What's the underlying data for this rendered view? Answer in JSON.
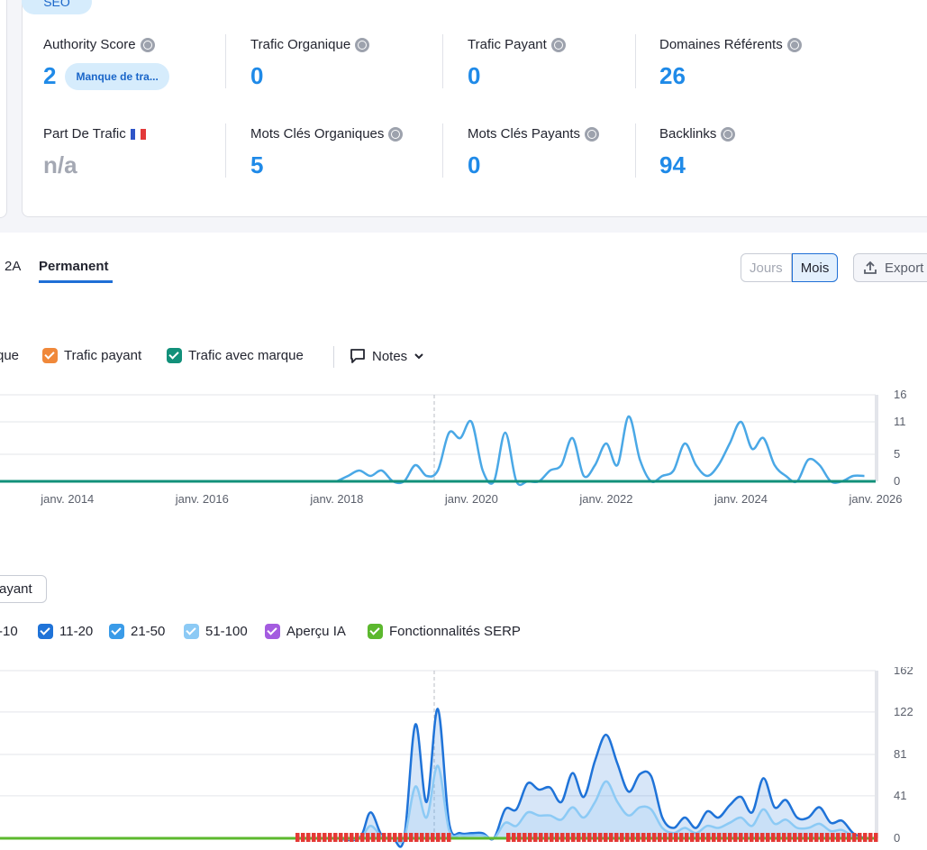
{
  "seo_pill": "SEO",
  "metrics": {
    "authority_score": {
      "label": "Authority Score",
      "value": "2",
      "badge": "Manque de tra..."
    },
    "trafic_organique": {
      "label": "Trafic Organique",
      "value": "0"
    },
    "trafic_payant": {
      "label": "Trafic Payant",
      "value": "0"
    },
    "domaines_referents": {
      "label": "Domaines Référents",
      "value": "26"
    },
    "part_de_trafic": {
      "label": "Part De Trafic",
      "value": "n/a"
    },
    "mots_cles_organiques": {
      "label": "Mots Clés Organiques",
      "value": "5"
    },
    "mots_cles_payants": {
      "label": "Mots Clés Payants",
      "value": "0"
    },
    "backlinks": {
      "label": "Backlinks",
      "value": "94"
    }
  },
  "tabs": [
    "2A",
    "Permanent"
  ],
  "active_tab": "Permanent",
  "granularity": {
    "options": [
      "Jours",
      "Mois"
    ],
    "selected": "Mois"
  },
  "export_label": "Export",
  "traffic_legend": [
    {
      "label": "que",
      "color": "#1f8ae8"
    },
    {
      "label": "Trafic payant",
      "color": "#f0883a"
    },
    {
      "label": "Trafic avec marque",
      "color": "#12907a"
    }
  ],
  "notes_label": "Notes",
  "payant_button": "ayant",
  "keyword_legend": [
    {
      "label": "-10",
      "color": "#1559b8"
    },
    {
      "label": "11-20",
      "color": "#1f73d8"
    },
    {
      "label": "21-50",
      "color": "#3a9be8"
    },
    {
      "label": "51-100",
      "color": "#8ccaf5"
    },
    {
      "label": "Aperçu IA",
      "color": "#a45ce0"
    },
    {
      "label": "Fonctionnalités SERP",
      "color": "#5cb82e"
    }
  ],
  "chart_data": [
    {
      "type": "line",
      "x_ticks": [
        "janv. 2014",
        "janv. 2016",
        "janv. 2018",
        "janv. 2020",
        "janv. 2022",
        "janv. 2024",
        "janv. 2026"
      ],
      "y_ticks": [
        0,
        5,
        11,
        16
      ],
      "ylim": [
        0,
        16
      ],
      "xlim": [
        "2013-01",
        "2026-01"
      ],
      "series": [
        {
          "name": "Trafic organique",
          "color": "#4aa8e6",
          "points": [
            [
              "2018-01",
              0
            ],
            [
              "2018-03",
              1
            ],
            [
              "2018-05",
              2
            ],
            [
              "2018-07",
              1
            ],
            [
              "2018-09",
              2
            ],
            [
              "2018-11",
              0
            ],
            [
              "2019-01",
              0
            ],
            [
              "2019-03",
              3
            ],
            [
              "2019-05",
              1
            ],
            [
              "2019-07",
              2
            ],
            [
              "2019-09",
              9
            ],
            [
              "2019-11",
              8
            ],
            [
              "2020-01",
              11
            ],
            [
              "2020-03",
              2
            ],
            [
              "2020-05",
              0
            ],
            [
              "2020-07",
              9
            ],
            [
              "2020-09",
              0
            ],
            [
              "2020-11",
              0
            ],
            [
              "2021-01",
              0
            ],
            [
              "2021-03",
              2
            ],
            [
              "2021-05",
              3
            ],
            [
              "2021-07",
              8
            ],
            [
              "2021-09",
              1
            ],
            [
              "2021-11",
              3
            ],
            [
              "2022-01",
              7
            ],
            [
              "2022-03",
              3
            ],
            [
              "2022-05",
              12
            ],
            [
              "2022-07",
              4
            ],
            [
              "2022-09",
              0
            ],
            [
              "2022-11",
              1
            ],
            [
              "2023-01",
              2
            ],
            [
              "2023-03",
              7
            ],
            [
              "2023-05",
              3
            ],
            [
              "2023-07",
              1
            ],
            [
              "2023-09",
              3
            ],
            [
              "2023-11",
              7
            ],
            [
              "2024-01",
              11
            ],
            [
              "2024-03",
              6
            ],
            [
              "2024-05",
              8
            ],
            [
              "2024-07",
              3
            ],
            [
              "2024-09",
              1
            ],
            [
              "2024-11",
              0
            ],
            [
              "2025-01",
              4
            ],
            [
              "2025-03",
              3
            ],
            [
              "2025-05",
              0
            ],
            [
              "2025-07",
              0
            ],
            [
              "2025-09",
              1
            ],
            [
              "2025-11",
              1
            ]
          ]
        },
        {
          "name": "Trafic avec marque",
          "color": "#12907a",
          "points": [
            [
              "2013-01",
              0
            ],
            [
              "2026-01",
              0
            ]
          ]
        }
      ]
    },
    {
      "type": "area",
      "x_ticks": [],
      "y_ticks": [
        0,
        41,
        81,
        122,
        162
      ],
      "ylim": [
        0,
        162
      ],
      "xlim": [
        "2013-01",
        "2026-01"
      ],
      "series": [
        {
          "name": "11-20",
          "color": "#1f73d8",
          "points": [
            [
              "2018-01",
              0
            ],
            [
              "2018-05",
              0
            ],
            [
              "2018-07",
              25
            ],
            [
              "2018-09",
              3
            ],
            [
              "2018-11",
              0
            ],
            [
              "2019-01",
              0
            ],
            [
              "2019-03",
              110
            ],
            [
              "2019-05",
              35
            ],
            [
              "2019-07",
              125
            ],
            [
              "2019-09",
              15
            ],
            [
              "2019-11",
              5
            ],
            [
              "2020-01",
              5
            ],
            [
              "2020-03",
              5
            ],
            [
              "2020-05",
              0
            ],
            [
              "2020-07",
              28
            ],
            [
              "2020-09",
              28
            ],
            [
              "2020-11",
              53
            ],
            [
              "2021-01",
              47
            ],
            [
              "2021-03",
              49
            ],
            [
              "2021-05",
              35
            ],
            [
              "2021-07",
              63
            ],
            [
              "2021-09",
              40
            ],
            [
              "2021-11",
              75
            ],
            [
              "2022-01",
              100
            ],
            [
              "2022-03",
              72
            ],
            [
              "2022-05",
              45
            ],
            [
              "2022-07",
              62
            ],
            [
              "2022-09",
              60
            ],
            [
              "2022-11",
              20
            ],
            [
              "2023-01",
              10
            ],
            [
              "2023-03",
              20
            ],
            [
              "2023-05",
              10
            ],
            [
              "2023-07",
              26
            ],
            [
              "2023-09",
              20
            ],
            [
              "2023-11",
              32
            ],
            [
              "2024-01",
              40
            ],
            [
              "2024-03",
              25
            ],
            [
              "2024-05",
              58
            ],
            [
              "2024-07",
              30
            ],
            [
              "2024-09",
              37
            ],
            [
              "2024-11",
              20
            ],
            [
              "2025-01",
              20
            ],
            [
              "2025-03",
              30
            ],
            [
              "2025-05",
              15
            ],
            [
              "2025-07",
              17
            ],
            [
              "2025-09",
              5
            ],
            [
              "2025-11",
              0
            ]
          ]
        },
        {
          "name": "51-100",
          "color": "#8ccaf5",
          "points": [
            [
              "2018-01",
              0
            ],
            [
              "2018-05",
              0
            ],
            [
              "2018-07",
              12
            ],
            [
              "2018-09",
              2
            ],
            [
              "2018-11",
              0
            ],
            [
              "2019-01",
              0
            ],
            [
              "2019-03",
              50
            ],
            [
              "2019-05",
              20
            ],
            [
              "2019-07",
              70
            ],
            [
              "2019-09",
              8
            ],
            [
              "2019-11",
              3
            ],
            [
              "2020-01",
              3
            ],
            [
              "2020-03",
              3
            ],
            [
              "2020-05",
              0
            ],
            [
              "2020-07",
              15
            ],
            [
              "2020-09",
              12
            ],
            [
              "2020-11",
              25
            ],
            [
              "2021-01",
              22
            ],
            [
              "2021-03",
              22
            ],
            [
              "2021-05",
              18
            ],
            [
              "2021-07",
              30
            ],
            [
              "2021-09",
              20
            ],
            [
              "2021-11",
              35
            ],
            [
              "2022-01",
              55
            ],
            [
              "2022-03",
              35
            ],
            [
              "2022-05",
              22
            ],
            [
              "2022-07",
              30
            ],
            [
              "2022-09",
              28
            ],
            [
              "2022-11",
              10
            ],
            [
              "2023-01",
              5
            ],
            [
              "2023-03",
              10
            ],
            [
              "2023-05",
              5
            ],
            [
              "2023-07",
              12
            ],
            [
              "2023-09",
              10
            ],
            [
              "2023-11",
              15
            ],
            [
              "2024-01",
              20
            ],
            [
              "2024-03",
              12
            ],
            [
              "2024-05",
              28
            ],
            [
              "2024-07",
              14
            ],
            [
              "2024-09",
              18
            ],
            [
              "2024-11",
              10
            ],
            [
              "2025-01",
              10
            ],
            [
              "2025-03",
              14
            ],
            [
              "2025-05",
              7
            ],
            [
              "2025-07",
              8
            ],
            [
              "2025-09",
              2
            ],
            [
              "2025-11",
              0
            ]
          ]
        },
        {
          "name": "Fonctionnalités SERP",
          "color": "#5cb82e",
          "points": [
            [
              "2013-01",
              0
            ],
            [
              "2026-01",
              0
            ]
          ]
        }
      ]
    }
  ]
}
